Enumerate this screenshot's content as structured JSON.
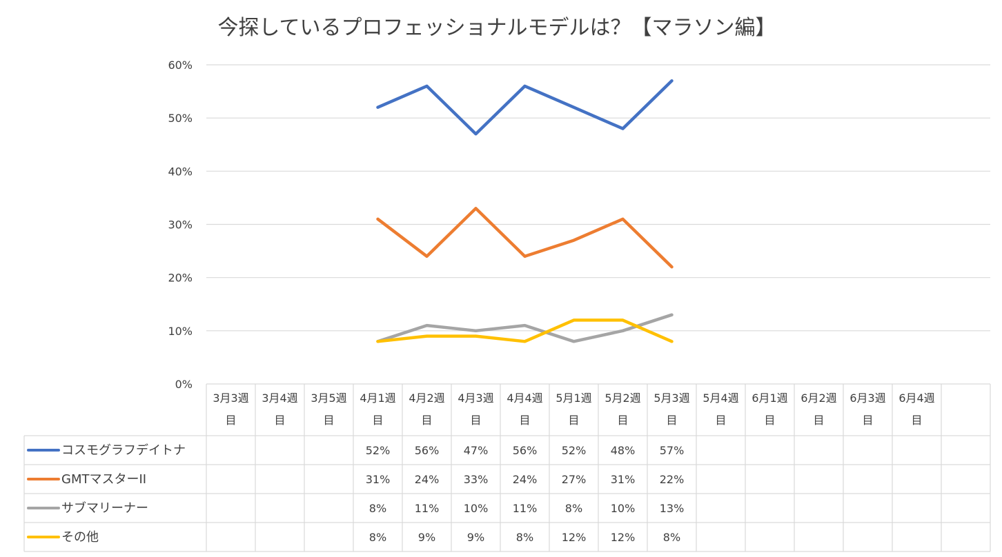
{
  "chart_data": {
    "type": "line",
    "title": "今探しているプロフェッショナルモデルは？【マラソン編】",
    "ylim": [
      0,
      0.6
    ],
    "y_ticks": [
      0,
      0.1,
      0.2,
      0.3,
      0.4,
      0.5,
      0.6
    ],
    "y_tick_labels": [
      "0%",
      "10%",
      "20%",
      "30%",
      "40%",
      "50%",
      "60%"
    ],
    "grid": true,
    "legend_placement": "data-table",
    "categories": [
      {
        "line1": "3月3週",
        "line2": "目"
      },
      {
        "line1": "3月4週",
        "line2": "目"
      },
      {
        "line1": "3月5週",
        "line2": "目"
      },
      {
        "line1": "4月1週",
        "line2": "目"
      },
      {
        "line1": "4月2週",
        "line2": "目"
      },
      {
        "line1": "4月3週",
        "line2": "目"
      },
      {
        "line1": "4月4週",
        "line2": "目"
      },
      {
        "line1": "5月1週",
        "line2": "目"
      },
      {
        "line1": "5月2週",
        "line2": "目"
      },
      {
        "line1": "5月3週",
        "line2": "目"
      },
      {
        "line1": "5月4週",
        "line2": "目"
      },
      {
        "line1": "6月1週",
        "line2": "目"
      },
      {
        "line1": "6月2週",
        "line2": "目"
      },
      {
        "line1": "6月3週",
        "line2": "目"
      },
      {
        "line1": "6月4週",
        "line2": "目"
      },
      {
        "line1": "",
        "line2": ""
      }
    ],
    "series": [
      {
        "name": "コスモグラフデイトナ",
        "color": "#4472C4",
        "values": [
          null,
          null,
          null,
          0.52,
          0.56,
          0.47,
          0.56,
          0.52,
          0.48,
          0.57,
          null,
          null,
          null,
          null,
          null,
          null
        ],
        "labels": [
          "",
          "",
          "",
          "52%",
          "56%",
          "47%",
          "56%",
          "52%",
          "48%",
          "57%",
          "",
          "",
          "",
          "",
          "",
          ""
        ]
      },
      {
        "name": "GMTマスターII",
        "color": "#ED7D31",
        "values": [
          null,
          null,
          null,
          0.31,
          0.24,
          0.33,
          0.24,
          0.27,
          0.31,
          0.22,
          null,
          null,
          null,
          null,
          null,
          null
        ],
        "labels": [
          "",
          "",
          "",
          "31%",
          "24%",
          "33%",
          "24%",
          "27%",
          "31%",
          "22%",
          "",
          "",
          "",
          "",
          "",
          ""
        ]
      },
      {
        "name": "サブマリーナー",
        "color": "#A5A5A5",
        "values": [
          null,
          null,
          null,
          0.08,
          0.11,
          0.1,
          0.11,
          0.08,
          0.1,
          0.13,
          null,
          null,
          null,
          null,
          null,
          null
        ],
        "labels": [
          "",
          "",
          "",
          "8%",
          "11%",
          "10%",
          "11%",
          "8%",
          "10%",
          "13%",
          "",
          "",
          "",
          "",
          "",
          ""
        ]
      },
      {
        "name": "その他",
        "color": "#FFC000",
        "values": [
          null,
          null,
          null,
          0.08,
          0.09,
          0.09,
          0.08,
          0.12,
          0.12,
          0.08,
          null,
          null,
          null,
          null,
          null,
          null
        ],
        "labels": [
          "",
          "",
          "",
          "8%",
          "9%",
          "9%",
          "8%",
          "12%",
          "12%",
          "8%",
          "",
          "",
          "",
          "",
          "",
          ""
        ]
      }
    ]
  }
}
